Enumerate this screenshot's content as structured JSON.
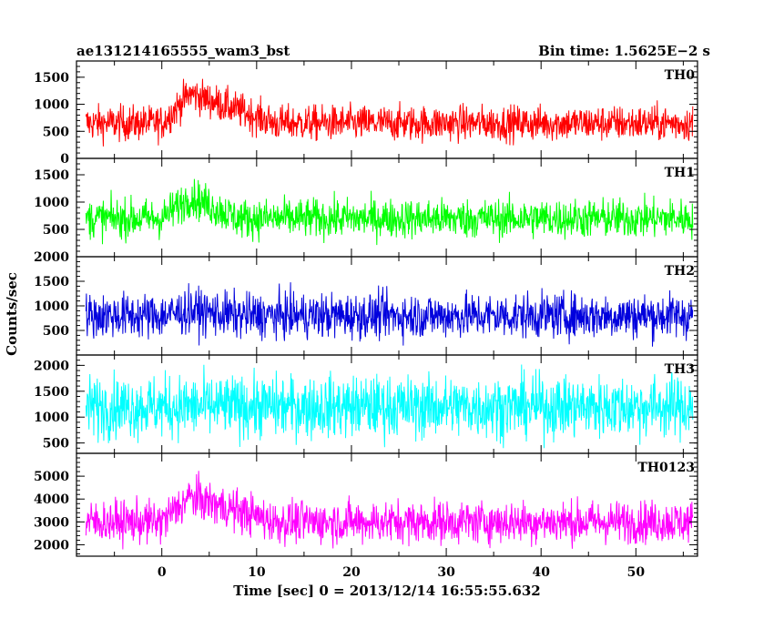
{
  "header": {
    "title": "ae131214165555_wam3_bst",
    "bin_time": "Bin time: 1.5625E−2 s"
  },
  "chart_data": {
    "type": "line",
    "xlabel": "Time [sec] 0 = 2013/12/14 16:55:55.632",
    "ylabel": "Counts/sec",
    "xlim": [
      -9,
      56.5
    ],
    "x_ticks": [
      0,
      10,
      20,
      30,
      40,
      50
    ],
    "x_tick_labels": [
      "0",
      "10",
      "20",
      "30",
      "40",
      "50"
    ],
    "data_x_range": [
      -8,
      56
    ],
    "panels": [
      {
        "name": "TH0",
        "color": "#ff0000",
        "ylim": [
          0,
          1800
        ],
        "y_ticks": [
          0,
          500,
          1000,
          1500
        ],
        "y_tick_labels": [
          "0",
          "500",
          "1000",
          "1500"
        ],
        "baseline_mean": 650,
        "baseline_noise": 300,
        "burst": {
          "start": 0,
          "peak": 3,
          "end": 12,
          "amplitude": 550
        }
      },
      {
        "name": "TH1",
        "color": "#00ff00",
        "ylim": [
          0,
          1800
        ],
        "y_ticks": [
          500,
          1000,
          1500
        ],
        "y_tick_labels": [
          "500",
          "1000",
          "1500"
        ],
        "baseline_mean": 700,
        "baseline_noise": 330,
        "burst": {
          "start": 0,
          "peak": 3,
          "end": 8,
          "amplitude": 400
        }
      },
      {
        "name": "TH2",
        "color": "#0000dd",
        "ylim": [
          0,
          2000
        ],
        "y_ticks": [
          500,
          1000,
          1500,
          2000
        ],
        "y_tick_labels": [
          "500",
          "1000",
          "1500",
          "2000"
        ],
        "baseline_mean": 800,
        "baseline_noise": 420,
        "burst": {
          "start": 0,
          "peak": 3,
          "end": 8,
          "amplitude": 100
        }
      },
      {
        "name": "TH3",
        "color": "#00ffff",
        "ylim": [
          300,
          2200
        ],
        "y_ticks": [
          500,
          1000,
          1500,
          2000
        ],
        "y_tick_labels": [
          "500",
          "1000",
          "1500",
          "2000"
        ],
        "baseline_mean": 1200,
        "baseline_noise": 550,
        "burst": {
          "start": 0,
          "peak": 3,
          "end": 8,
          "amplitude": 0
        }
      },
      {
        "name": "TH0123",
        "color": "#ff00ff",
        "ylim": [
          1500,
          6000
        ],
        "y_ticks": [
          2000,
          3000,
          4000,
          5000
        ],
        "y_tick_labels": [
          "2000",
          "3000",
          "4000",
          "5000"
        ],
        "baseline_mean": 3000,
        "baseline_noise": 850,
        "burst": {
          "start": 0,
          "peak": 3,
          "end": 12,
          "amplitude": 1100
        }
      }
    ]
  }
}
